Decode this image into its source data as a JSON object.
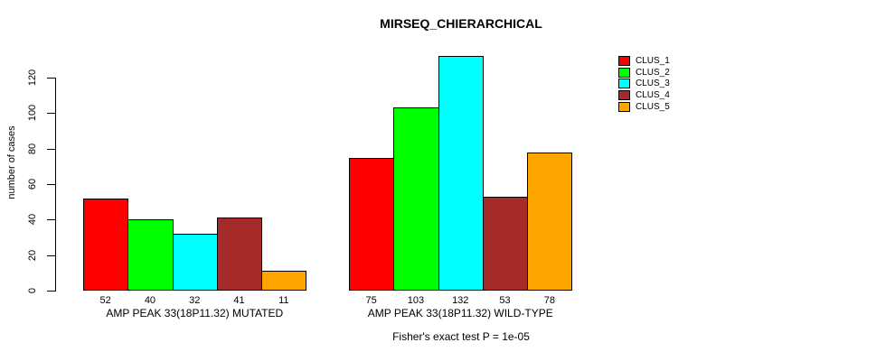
{
  "title": "MIRSEQ_CHIERARCHICAL",
  "footer": "Fisher's exact test P = 1e-05",
  "chart_data": {
    "type": "bar",
    "title": "MIRSEQ_CHIERARCHICAL",
    "xlabel": "",
    "ylabel": "number of cases",
    "ylim": [
      0,
      120
    ],
    "yticks": [
      0,
      20,
      40,
      60,
      80,
      100,
      120
    ],
    "grid": false,
    "legend_position": "top-right",
    "categories": [
      "AMP PEAK 33(18P11.32) MUTATED",
      "AMP PEAK 33(18P11.32) WILD-TYPE"
    ],
    "series": [
      {
        "name": "CLUS_1",
        "color": "#FF0000",
        "values": [
          52,
          75
        ]
      },
      {
        "name": "CLUS_2",
        "color": "#00FF00",
        "values": [
          40,
          103
        ]
      },
      {
        "name": "CLUS_3",
        "color": "#00FFFF",
        "values": [
          32,
          132
        ]
      },
      {
        "name": "CLUS_4",
        "color": "#A52A2A",
        "values": [
          41,
          53
        ]
      },
      {
        "name": "CLUS_5",
        "color": "#FFA500",
        "values": [
          11,
          78
        ]
      }
    ],
    "bar_value_labels": [
      [
        52,
        40,
        32,
        41,
        11
      ],
      [
        75,
        103,
        132,
        53,
        78
      ]
    ],
    "annotation": "Fisher's exact test P = 1e-05"
  }
}
